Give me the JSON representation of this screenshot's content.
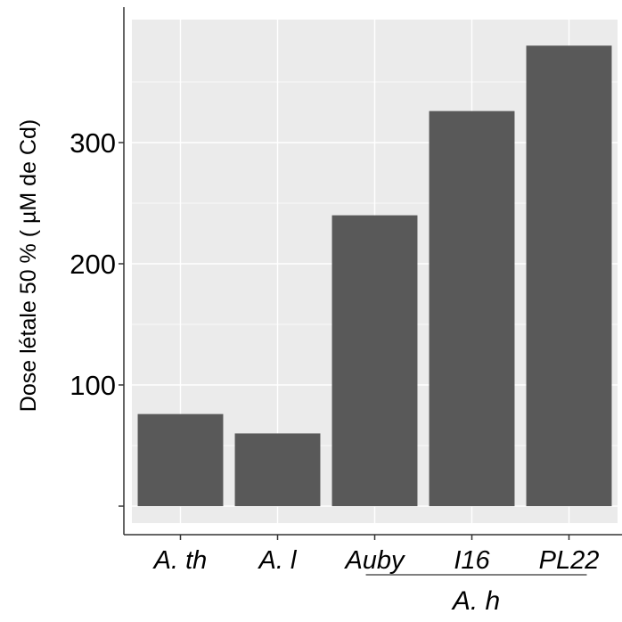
{
  "chart_data": {
    "type": "bar",
    "categories": [
      "A. th",
      "A. l",
      "Auby",
      "I16",
      "PL22"
    ],
    "values": [
      76,
      60,
      240,
      326,
      380
    ],
    "ylabel": "Dose létale 50 % ( µM de Cd)",
    "group_label": "A. h",
    "group_categories": [
      "Auby",
      "I16",
      "PL22"
    ],
    "yticks": [
      100,
      200,
      300
    ],
    "ylim": [
      -22,
      400
    ],
    "grid": true,
    "colors": {
      "bar": "#595959",
      "panel": "#ebebeb",
      "grid": "#ffffff",
      "axis": "#333333"
    }
  }
}
